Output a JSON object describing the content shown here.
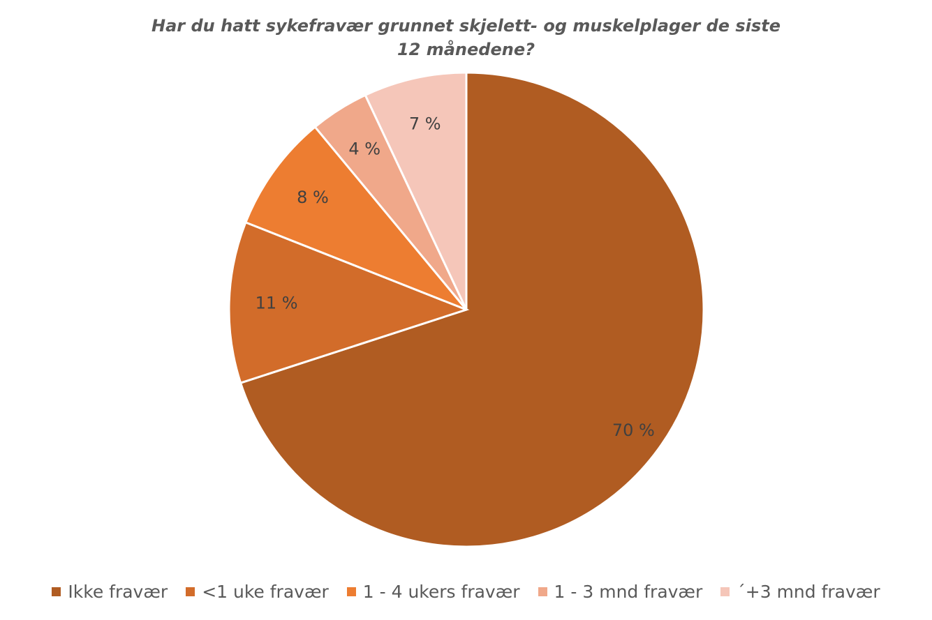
{
  "chart_data": {
    "type": "pie",
    "title": "Har du hatt sykefravær grunnet skjelett- og muskelplager de siste 12 månedene?",
    "categories": [
      "Ikke fravær",
      "<1 uke fravær",
      "1 - 4 ukers fravær",
      "1 - 3 mnd fravær",
      "´+3 mnd fravær"
    ],
    "values": [
      70,
      11,
      8,
      4,
      7
    ],
    "value_labels": [
      "70 %",
      "11 %",
      "8 %",
      "4 %",
      "7 %"
    ],
    "colors": [
      "#b05c22",
      "#d26c2a",
      "#ed7d31",
      "#f0a88a",
      "#f5c6b9"
    ]
  }
}
